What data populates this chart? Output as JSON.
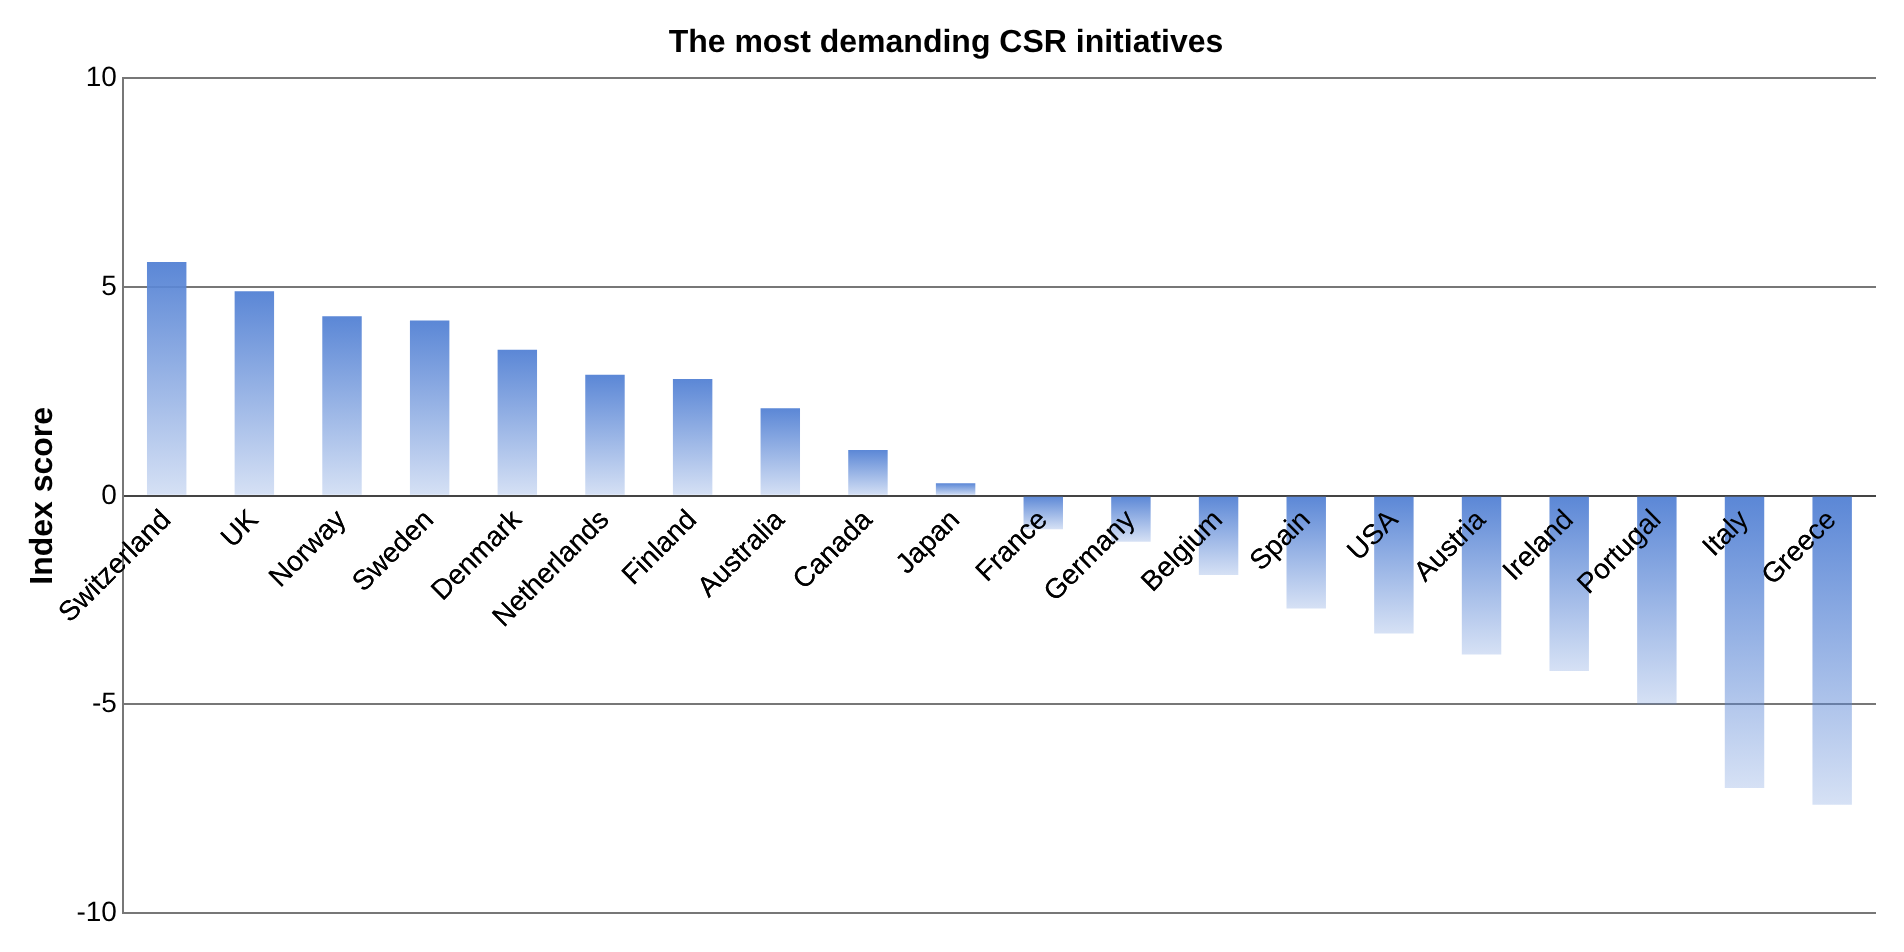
{
  "chart_data": {
    "type": "bar",
    "title": "The most demanding CSR initiatives",
    "ylabel": "Index score",
    "categories": [
      "Switzerland",
      "UK",
      "Norway",
      "Sweden",
      "Denmark",
      "Netherlands",
      "Finland",
      "Australia",
      "Canada",
      "Japan",
      "France",
      "Germany",
      "Belgium",
      "Spain",
      "USA",
      "Austria",
      "Ireland",
      "Portugal",
      "Italy",
      "Greece"
    ],
    "values": [
      5.6,
      4.9,
      4.3,
      4.2,
      3.5,
      2.9,
      2.8,
      2.1,
      1.1,
      0.3,
      -0.8,
      -1.1,
      -1.9,
      -2.7,
      -3.3,
      -3.8,
      -4.2,
      -5.0,
      -7.0,
      -7.4
    ],
    "color": "#5b87d6",
    "ylim": [
      -10,
      10
    ],
    "yticks": [
      -10,
      -5,
      0,
      5,
      10
    ],
    "grid": "y"
  }
}
